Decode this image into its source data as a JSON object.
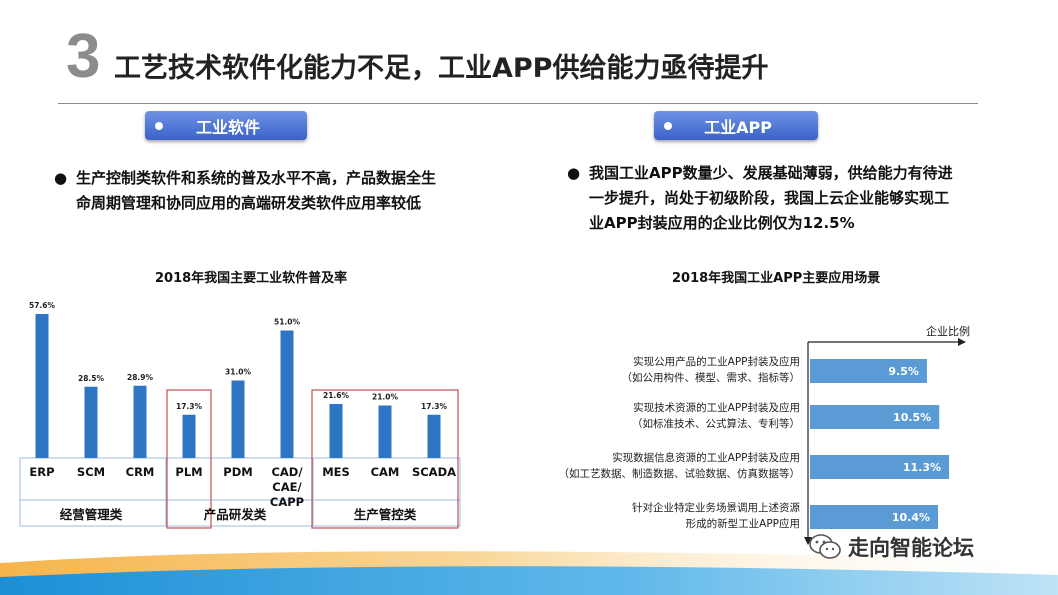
{
  "header": {
    "number": "3",
    "title": "工艺技术软件化能力不足，工业APP供给能力亟待提升"
  },
  "left": {
    "pill": "工业软件",
    "bullet_line1": "生产控制类软件和系统的普及水平不高，产品数据全生",
    "bullet_line2": "命周期管理和协同应用的高端研发类软件应用率较低"
  },
  "right": {
    "pill": "工业APP",
    "bullet_line1": "我国工业APP数量少、发展基础薄弱，供给能力有待进",
    "bullet_line2": "一步提升，尚处于初级阶段，我国上云企业能够实现工",
    "bullet_line3": "业APP封装应用的企业比例仅为12.5%"
  },
  "footer": {
    "brand": "走向智能论坛"
  },
  "colors": {
    "bar": "#2e75c4",
    "bar_light": "#5b9bd5",
    "pill": "#3a62c8",
    "highlight_box": "#c0504d"
  },
  "chart_data": [
    {
      "type": "bar",
      "title": "2018年我国主要工业软件普及率",
      "categories": [
        "ERP",
        "SCM",
        "CRM",
        "PLM",
        "PDM",
        "CAD/CAE/CAPP",
        "MES",
        "CAM",
        "SCADA"
      ],
      "category_lines": [
        [
          "ERP"
        ],
        [
          "SCM"
        ],
        [
          "CRM"
        ],
        [
          "PLM"
        ],
        [
          "PDM"
        ],
        [
          "CAD/",
          "CAE/",
          "CAPP"
        ],
        [
          "MES"
        ],
        [
          "CAM"
        ],
        [
          "SCADA"
        ]
      ],
      "values": [
        57.6,
        28.5,
        28.9,
        17.3,
        31.0,
        51.0,
        21.6,
        21.0,
        17.3
      ],
      "value_labels": [
        "57.6%",
        "28.5%",
        "28.9%",
        "17.3%",
        "31.0%",
        "51.0%",
        "21.6%",
        "21.0%",
        "17.3%"
      ],
      "groups": [
        {
          "label": "经营管理类",
          "members": [
            "ERP",
            "SCM",
            "CRM"
          ]
        },
        {
          "label": "产品研发类",
          "members": [
            "PLM",
            "PDM",
            "CAD/CAE/CAPP"
          ]
        },
        {
          "label": "生产管控类",
          "members": [
            "MES",
            "CAM",
            "SCADA"
          ]
        }
      ],
      "highlighted": [
        "PLM",
        "MES",
        "CAM",
        "SCADA"
      ],
      "ylim": [
        0,
        60
      ]
    },
    {
      "type": "bar",
      "orientation": "horizontal",
      "title": "2018年我国工业APP主要应用场景",
      "axis_label": "企业比例",
      "categories": [
        [
          "实现公用产品的工业APP封装及应用",
          "（如公用构件、模型、需求、指标等）"
        ],
        [
          "实现技术资源的工业APP封装及应用",
          "（如标准技术、公式算法、专利等）"
        ],
        [
          "实现数据信息资源的工业APP封装及应用",
          "（如工艺数据、制造数据、试验数据、仿真数据等）"
        ],
        [
          "针对企业特定业务场景调用上述资源",
          "形成的新型工业APP应用"
        ]
      ],
      "values": [
        9.5,
        10.5,
        11.3,
        10.4
      ],
      "value_labels": [
        "9.5%",
        "10.5%",
        "11.3%",
        "10.4%"
      ],
      "xlim": [
        0,
        13
      ]
    }
  ]
}
